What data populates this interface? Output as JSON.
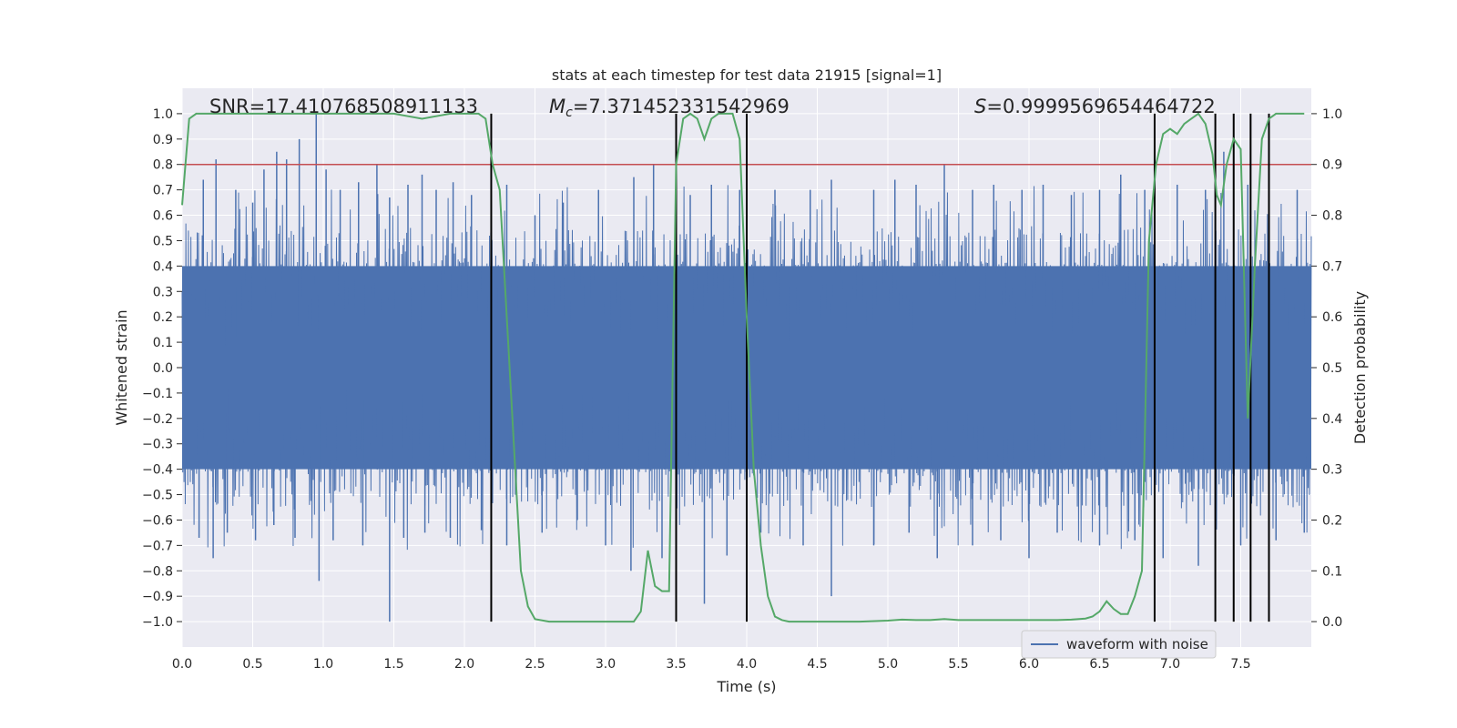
{
  "chart_data": {
    "type": "line",
    "title": "stats at each timestep for test data 21915 [signal=1]",
    "xlabel": "Time (s)",
    "ylabel": "Whitened strain",
    "ylabel_right": "Detection probability",
    "xlim": [
      0.0,
      8.0
    ],
    "ylim": [
      -1.1,
      1.1
    ],
    "ylim_right": [
      -0.05,
      1.05
    ],
    "xticks": [
      0.0,
      0.5,
      1.0,
      1.5,
      2.0,
      2.5,
      3.0,
      3.5,
      4.0,
      4.5,
      5.0,
      5.5,
      6.0,
      6.5,
      7.0,
      7.5
    ],
    "xtick_labels": [
      "0.0",
      "0.5",
      "1.0",
      "1.5",
      "2.0",
      "2.5",
      "3.0",
      "3.5",
      "4.0",
      "4.5",
      "5.0",
      "5.5",
      "6.0",
      "6.5",
      "7.0",
      "7.5"
    ],
    "yticks": [
      1.0,
      0.9,
      0.8,
      0.7,
      0.6,
      0.5,
      0.4,
      0.3,
      0.2,
      0.1,
      0.0,
      -0.1,
      -0.2,
      -0.3,
      -0.4,
      -0.5,
      -0.6,
      -0.7,
      -0.8,
      -0.9,
      -1.0
    ],
    "ytick_labels": [
      "1.0",
      "0.9",
      "0.8",
      "0.7",
      "0.6",
      "0.5",
      "0.4",
      "0.3",
      "0.2",
      "0.1",
      "0.0",
      "−0.1",
      "−0.2",
      "−0.3",
      "−0.4",
      "−0.5",
      "−0.6",
      "−0.7",
      "−0.8",
      "−0.9",
      "−1.0"
    ],
    "yticks_right": [
      1.0,
      0.9,
      0.8,
      0.7,
      0.6,
      0.5,
      0.4,
      0.3,
      0.2,
      0.1,
      0.0
    ],
    "ytick_labels_right": [
      "1.0",
      "0.9",
      "0.8",
      "0.7",
      "0.6",
      "0.5",
      "0.4",
      "0.3",
      "0.2",
      "0.1",
      "0.0"
    ],
    "grid": true,
    "legend": {
      "position": "bottom-right",
      "entries": [
        {
          "label": "waveform with noise",
          "color": "#4c72b0"
        }
      ]
    },
    "annotations": {
      "snr": "SNR=17.410768508911133",
      "mc_symbol": "M",
      "mc_sub": "c",
      "mc_value": "=7.371452331542969",
      "s_symbol": "S",
      "s_value": "=0.9999569654464722"
    },
    "threshold": {
      "axis": "right",
      "value": 0.9,
      "color": "#c44e52"
    },
    "vertical_lines": [
      2.19,
      3.5,
      4.0,
      6.89,
      7.32,
      7.45,
      7.57,
      7.7
    ],
    "waveform": {
      "name": "waveform with noise",
      "color": "#4c72b0",
      "description_band": "dense noise filling roughly -0.4 to 0.4 with spikes up to about +/-1.0",
      "core_band": [
        -0.4,
        0.4
      ],
      "peaks_positive": [
        [
          0.15,
          0.74
        ],
        [
          0.24,
          0.82
        ],
        [
          0.38,
          0.7
        ],
        [
          0.5,
          0.65
        ],
        [
          0.58,
          0.78
        ],
        [
          0.67,
          0.85
        ],
        [
          0.74,
          0.82
        ],
        [
          0.83,
          0.9
        ],
        [
          0.95,
          1.0
        ],
        [
          1.02,
          0.78
        ],
        [
          1.12,
          0.7
        ],
        [
          1.25,
          0.73
        ],
        [
          1.38,
          0.8
        ],
        [
          1.47,
          0.67
        ],
        [
          1.6,
          0.72
        ],
        [
          1.7,
          0.76
        ],
        [
          1.8,
          0.7
        ],
        [
          1.92,
          0.73
        ],
        [
          2.05,
          0.68
        ],
        [
          2.3,
          0.72
        ],
        [
          2.5,
          0.6
        ],
        [
          2.7,
          0.65
        ],
        [
          2.95,
          0.7
        ],
        [
          3.2,
          0.75
        ],
        [
          3.34,
          0.8
        ],
        [
          3.6,
          0.68
        ],
        [
          3.75,
          0.72
        ],
        [
          3.95,
          0.7
        ],
        [
          4.2,
          0.7
        ],
        [
          4.45,
          0.7
        ],
        [
          4.6,
          0.74
        ],
        [
          4.9,
          0.7
        ],
        [
          5.05,
          0.74
        ],
        [
          5.2,
          0.72
        ],
        [
          5.4,
          0.8
        ],
        [
          5.6,
          0.7
        ],
        [
          5.75,
          0.72
        ],
        [
          5.95,
          0.7
        ],
        [
          6.1,
          0.72
        ],
        [
          6.3,
          0.68
        ],
        [
          6.5,
          0.7
        ],
        [
          6.65,
          0.76
        ],
        [
          6.82,
          0.7
        ],
        [
          7.05,
          0.72
        ],
        [
          7.25,
          0.7
        ],
        [
          7.38,
          0.85
        ],
        [
          7.55,
          0.72
        ],
        [
          7.7,
          0.7
        ],
        [
          7.9,
          0.7
        ]
      ],
      "peaks_negative": [
        [
          0.12,
          -0.67
        ],
        [
          0.22,
          -0.75
        ],
        [
          0.32,
          -0.65
        ],
        [
          0.52,
          -0.68
        ],
        [
          0.65,
          -0.62
        ],
        [
          0.8,
          -0.67
        ],
        [
          0.97,
          -0.84
        ],
        [
          1.07,
          -0.68
        ],
        [
          1.28,
          -0.7
        ],
        [
          1.47,
          -1.0
        ],
        [
          1.57,
          -0.67
        ],
        [
          1.72,
          -0.65
        ],
        [
          1.9,
          -0.67
        ],
        [
          2.12,
          -0.64
        ],
        [
          2.3,
          -0.7
        ],
        [
          2.55,
          -0.65
        ],
        [
          2.8,
          -0.6
        ],
        [
          3.0,
          -0.7
        ],
        [
          3.18,
          -0.8
        ],
        [
          3.4,
          -0.75
        ],
        [
          3.7,
          -0.93
        ],
        [
          3.86,
          -0.74
        ],
        [
          4.1,
          -0.65
        ],
        [
          4.4,
          -0.7
        ],
        [
          4.6,
          -0.9
        ],
        [
          4.9,
          -0.7
        ],
        [
          5.15,
          -0.65
        ],
        [
          5.35,
          -0.75
        ],
        [
          5.6,
          -0.7
        ],
        [
          5.8,
          -0.68
        ],
        [
          6.0,
          -0.75
        ],
        [
          6.2,
          -0.65
        ],
        [
          6.5,
          -0.7
        ],
        [
          6.75,
          -0.68
        ],
        [
          6.95,
          -0.75
        ],
        [
          7.2,
          -0.78
        ],
        [
          7.32,
          -0.83
        ],
        [
          7.5,
          -0.7
        ],
        [
          7.75,
          -0.68
        ],
        [
          7.95,
          -0.65
        ]
      ]
    },
    "detection_probability": {
      "name": "detection probability",
      "color": "#55a868",
      "axis": "right",
      "x": [
        0.0,
        0.05,
        0.1,
        0.2,
        0.3,
        0.5,
        0.8,
        1.0,
        1.2,
        1.4,
        1.5,
        1.6,
        1.7,
        1.8,
        1.9,
        2.0,
        2.05,
        2.1,
        2.15,
        2.2,
        2.25,
        2.3,
        2.35,
        2.4,
        2.45,
        2.5,
        2.6,
        2.7,
        2.8,
        2.9,
        3.0,
        3.1,
        3.2,
        3.25,
        3.3,
        3.35,
        3.4,
        3.45,
        3.5,
        3.55,
        3.6,
        3.65,
        3.7,
        3.75,
        3.8,
        3.85,
        3.9,
        3.95,
        4.0,
        4.05,
        4.1,
        4.15,
        4.2,
        4.25,
        4.3,
        4.4,
        4.6,
        4.8,
        5.0,
        5.1,
        5.2,
        5.3,
        5.4,
        5.5,
        5.7,
        5.9,
        6.1,
        6.2,
        6.3,
        6.4,
        6.45,
        6.5,
        6.55,
        6.6,
        6.65,
        6.7,
        6.75,
        6.8,
        6.85,
        6.9,
        6.95,
        7.0,
        7.05,
        7.1,
        7.15,
        7.2,
        7.25,
        7.3,
        7.33,
        7.36,
        7.4,
        7.45,
        7.5,
        7.55,
        7.6,
        7.65,
        7.7,
        7.75,
        7.8,
        7.9,
        7.95
      ],
      "y": [
        0.82,
        0.99,
        1.0,
        1.0,
        1.0,
        1.0,
        1.0,
        1.0,
        1.0,
        1.0,
        1.0,
        0.995,
        0.99,
        0.995,
        1.0,
        1.0,
        1.0,
        1.0,
        0.99,
        0.9,
        0.85,
        0.6,
        0.35,
        0.1,
        0.03,
        0.005,
        0.0,
        0.0,
        0.0,
        0.0,
        0.0,
        0.0,
        0.0,
        0.02,
        0.14,
        0.07,
        0.06,
        0.06,
        0.9,
        0.99,
        1.0,
        0.99,
        0.95,
        0.99,
        1.0,
        1.0,
        1.0,
        0.95,
        0.6,
        0.3,
        0.15,
        0.05,
        0.01,
        0.003,
        0.0,
        0.0,
        0.0,
        0.0,
        0.002,
        0.004,
        0.003,
        0.003,
        0.005,
        0.003,
        0.003,
        0.003,
        0.003,
        0.003,
        0.004,
        0.006,
        0.01,
        0.02,
        0.04,
        0.025,
        0.015,
        0.015,
        0.05,
        0.1,
        0.75,
        0.9,
        0.96,
        0.97,
        0.96,
        0.98,
        0.99,
        1.0,
        0.98,
        0.92,
        0.84,
        0.82,
        0.9,
        0.95,
        0.93,
        0.4,
        0.7,
        0.95,
        0.99,
        1.0,
        1.0,
        1.0,
        1.0
      ]
    }
  }
}
